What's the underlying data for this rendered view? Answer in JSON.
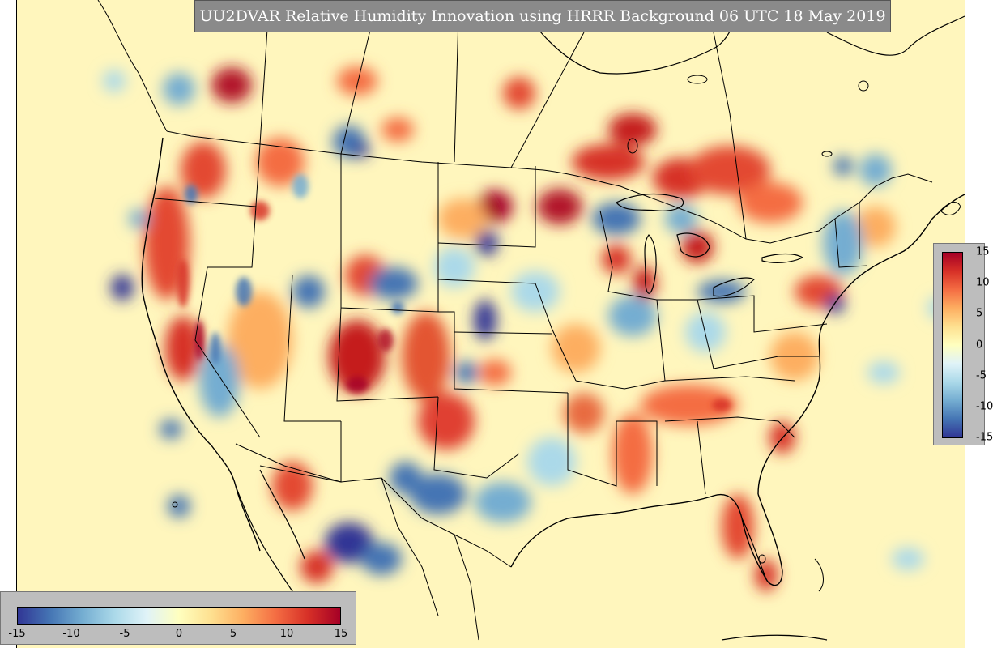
{
  "title": "UU2DVAR Relative Humidity Innovation using HRRR Background 06 UTC 18 May 2019",
  "colorbar": {
    "min": -15,
    "max": 15,
    "colors": [
      "#313695",
      "#4575b4",
      "#74add1",
      "#abd9e9",
      "#e0f3f8",
      "#ffffbf",
      "#fee090",
      "#fdae61",
      "#f46d43",
      "#d73027",
      "#a50026"
    ],
    "vertical_ticks": [
      "15",
      "10",
      "5",
      "0",
      "-5",
      "-10",
      "-15"
    ],
    "horizontal_ticks": [
      "-15",
      "-10",
      "-5",
      "0",
      "5",
      "10",
      "15"
    ]
  }
}
